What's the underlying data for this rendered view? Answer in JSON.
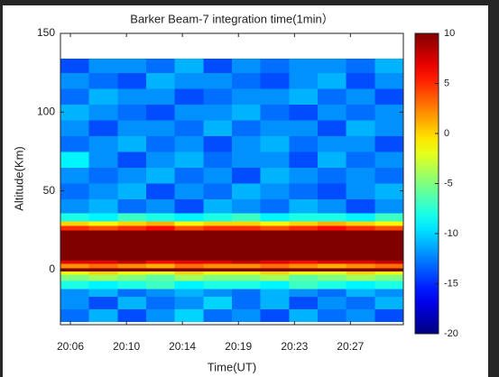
{
  "chart_data": {
    "type": "heatmap",
    "title": "Barker Beam-7  integration time(1min）",
    "xlabel": "Time(UT)",
    "ylabel": "Altitude(Km)",
    "xlim": [
      1205.26,
      1230.77
    ],
    "xticks": [
      {
        "value": 1206,
        "label": "20:06"
      },
      {
        "value": 1210.17,
        "label": "20:10"
      },
      {
        "value": 1214.33,
        "label": "20:14"
      },
      {
        "value": 1218.5,
        "label": "20:19"
      },
      {
        "value": 1222.67,
        "label": "20:23"
      },
      {
        "value": 1226.83,
        "label": "20:27"
      }
    ],
    "ylim": [
      -35,
      150
    ],
    "yticks": [
      0,
      50,
      100,
      150
    ],
    "x_edges": [
      1205.26,
      1207.39,
      1209.51,
      1211.64,
      1213.76,
      1215.89,
      1218.01,
      1220.14,
      1222.27,
      1224.39,
      1226.52,
      1228.64,
      1230.77
    ],
    "y_edges": [
      -33,
      -25,
      -17,
      -12,
      -7,
      -3,
      -1,
      1,
      4,
      6,
      25,
      28,
      31,
      36,
      45,
      55,
      65,
      75,
      85,
      95,
      105,
      115,
      125,
      134
    ],
    "z": [
      [
        -13,
        -11,
        -14,
        -12,
        -10,
        -13,
        -12,
        -14,
        -11,
        -13,
        -12,
        -14
      ],
      [
        -12,
        -14,
        -11,
        -13,
        -12,
        -10,
        -13,
        -11,
        -14,
        -12,
        -13,
        -11
      ],
      [
        -12,
        -11,
        -13,
        -12,
        -11,
        -12,
        -13,
        -11,
        -12,
        -13,
        -11,
        -12
      ],
      [
        -8,
        -9,
        -8,
        -7,
        -9,
        -8,
        -8,
        -9,
        -7,
        -8,
        -9,
        -8
      ],
      [
        -5,
        -4,
        -5,
        -6,
        -4,
        -5,
        -5,
        -4,
        -6,
        -5,
        -4,
        -5
      ],
      [
        -1,
        0,
        -1,
        -2,
        0,
        -1,
        -1,
        0,
        -1,
        -2,
        0,
        -1
      ],
      [
        10,
        10,
        10,
        10,
        10,
        10,
        10,
        10,
        10,
        10,
        10,
        10
      ],
      [
        2,
        3,
        2,
        1,
        3,
        2,
        2,
        3,
        2,
        1,
        2,
        3
      ],
      [
        7,
        7,
        8,
        6,
        7,
        7,
        8,
        7,
        6,
        7,
        7,
        8
      ],
      [
        10,
        10,
        10,
        10,
        10,
        10,
        10,
        10,
        10,
        10,
        10,
        10
      ],
      [
        5,
        4,
        5,
        6,
        4,
        5,
        5,
        4,
        5,
        6,
        5,
        4
      ],
      [
        0,
        -1,
        0,
        1,
        -1,
        0,
        0,
        -1,
        0,
        1,
        0,
        -1
      ],
      [
        -8,
        -9,
        -7,
        -8,
        -9,
        -8,
        -7,
        -9,
        -8,
        -8,
        -9,
        -7
      ],
      [
        -12,
        -11,
        -13,
        -12,
        -14,
        -11,
        -12,
        -13,
        -11,
        -12,
        -14,
        -12
      ],
      [
        -13,
        -12,
        -11,
        -14,
        -12,
        -13,
        -11,
        -12,
        -13,
        -14,
        -12,
        -11
      ],
      [
        -12,
        -13,
        -12,
        -11,
        -13,
        -12,
        -14,
        -11,
        -12,
        -13,
        -12,
        -13
      ],
      [
        -9,
        -12,
        -14,
        -12,
        -11,
        -13,
        -12,
        -12,
        -14,
        -11,
        -13,
        -12
      ],
      [
        -13,
        -12,
        -11,
        -13,
        -12,
        -14,
        -12,
        -11,
        -13,
        -12,
        -12,
        -14
      ],
      [
        -12,
        -14,
        -12,
        -12,
        -13,
        -11,
        -13,
        -12,
        -12,
        -14,
        -11,
        -12
      ],
      [
        -11,
        -12,
        -13,
        -14,
        -12,
        -12,
        -11,
        -13,
        -14,
        -12,
        -13,
        -12
      ],
      [
        -13,
        -11,
        -12,
        -12,
        -14,
        -13,
        -12,
        -12,
        -11,
        -13,
        -12,
        -14
      ],
      [
        -12,
        -13,
        -14,
        -11,
        -12,
        -12,
        -13,
        -14,
        -12,
        -11,
        -14,
        -12
      ],
      [
        -14,
        -12,
        -12,
        -13,
        -11,
        -14,
        -12,
        -13,
        -12,
        -12,
        -13,
        -11
      ]
    ],
    "colormap": "jet",
    "clim": [
      -20,
      10
    ],
    "cticks": [
      -20,
      -15,
      -10,
      -5,
      0,
      5,
      10
    ]
  }
}
